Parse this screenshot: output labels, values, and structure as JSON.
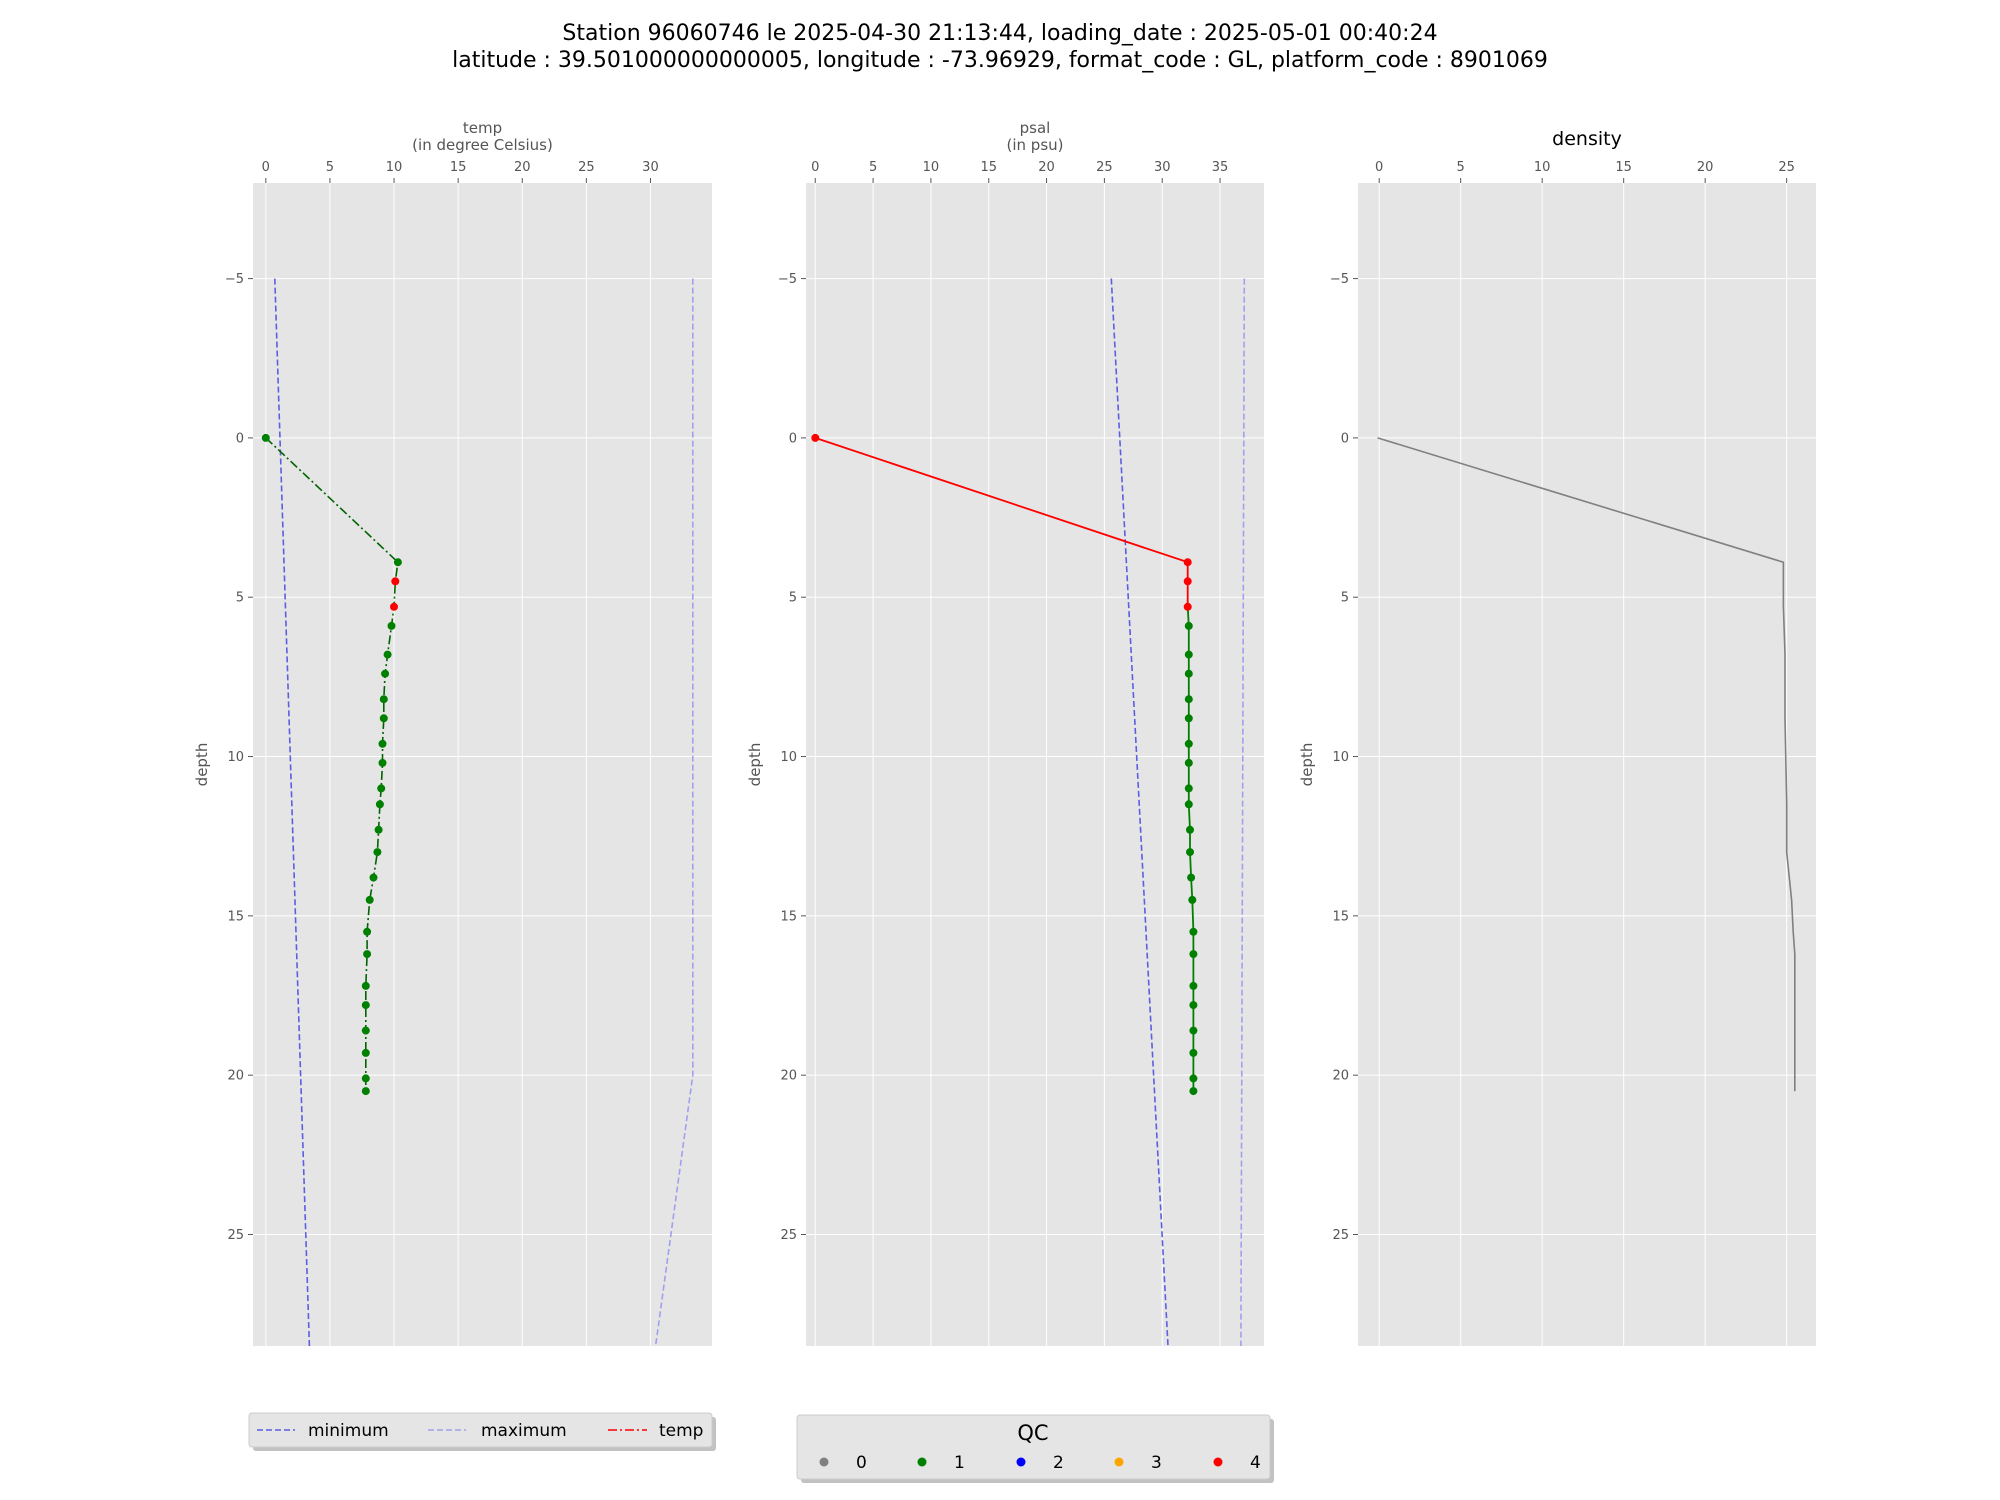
{
  "figure": {
    "title_line1": "Station 96060746 le 2025-04-30 21:13:44, loading_date : 2025-05-01 00:40:24",
    "title_line2": "latitude : 39.501000000000005, longitude : -73.96929, format_code : GL, platform_code : 8901069"
  },
  "colors": {
    "panel_bg": "#e5e5e5",
    "grid": "#ffffff",
    "minimum": "#5b5fe0",
    "maximum": "#a0a0ee",
    "temp_line": "#006400",
    "psal_line": "#ff0000",
    "density_line": "#808080",
    "qc_0": "#808080",
    "qc_1": "#008000",
    "qc_2": "#0000ff",
    "qc_3": "#ffa500",
    "qc_4": "#ff0000"
  },
  "legends": {
    "lines": {
      "minimum": "minimum",
      "maximum": "maximum",
      "temp": "temp"
    },
    "qc": {
      "title": "QC",
      "labels": [
        "0",
        "1",
        "2",
        "3",
        "4"
      ]
    }
  },
  "chart_data": [
    {
      "type": "line",
      "name": "temp",
      "xlabel_line1": "temp",
      "xlabel_line2": "(in degree Celsius)",
      "ylabel": "depth",
      "xticks": [
        0,
        5,
        10,
        15,
        20,
        25,
        30
      ],
      "yticks": [
        -5,
        0,
        5,
        10,
        15,
        20,
        25
      ],
      "xlim": [
        -1,
        34.8
      ],
      "ylim": [
        28.5,
        -8
      ],
      "y_inverted": true,
      "grid": true,
      "depth": [
        0,
        3.9,
        4.5,
        5.3,
        5.9,
        6.8,
        7.4,
        8.2,
        8.8,
        9.6,
        10.2,
        11.0,
        11.5,
        12.3,
        13.0,
        13.8,
        14.5,
        15.5,
        16.2,
        17.2,
        17.8,
        18.6,
        19.3,
        20.1,
        20.5
      ],
      "values": [
        0.0,
        10.3,
        10.1,
        10.0,
        9.8,
        9.5,
        9.3,
        9.2,
        9.2,
        9.1,
        9.1,
        9.0,
        8.9,
        8.8,
        8.7,
        8.4,
        8.1,
        7.9,
        7.9,
        7.8,
        7.8,
        7.8,
        7.8,
        7.8,
        7.8
      ],
      "qc": [
        1,
        1,
        4,
        4,
        1,
        1,
        1,
        1,
        1,
        1,
        1,
        1,
        1,
        1,
        1,
        1,
        1,
        1,
        1,
        1,
        1,
        1,
        1,
        1,
        1
      ],
      "minimum": {
        "depth": [
          -5,
          28.5
        ],
        "values": [
          0.7,
          3.4
        ]
      },
      "maximum": {
        "depth": [
          -5,
          20,
          28.5
        ],
        "values": [
          33.3,
          33.3,
          30.4
        ]
      }
    },
    {
      "type": "line",
      "name": "psal",
      "xlabel_line1": "psal",
      "xlabel_line2": "(in psu)",
      "ylabel": "depth",
      "xticks": [
        0,
        5,
        10,
        15,
        20,
        25,
        30,
        35
      ],
      "yticks": [
        -5,
        0,
        5,
        10,
        15,
        20,
        25
      ],
      "xlim": [
        -0.8,
        38.8
      ],
      "ylim": [
        28.5,
        -8
      ],
      "y_inverted": true,
      "grid": true,
      "depth": [
        0,
        3.9,
        4.5,
        5.3,
        5.9,
        6.8,
        7.4,
        8.2,
        8.8,
        9.6,
        10.2,
        11.0,
        11.5,
        12.3,
        13.0,
        13.8,
        14.5,
        15.5,
        16.2,
        17.2,
        17.8,
        18.6,
        19.3,
        20.1,
        20.5
      ],
      "values": [
        0.0,
        32.2,
        32.2,
        32.2,
        32.3,
        32.3,
        32.3,
        32.3,
        32.3,
        32.3,
        32.3,
        32.3,
        32.3,
        32.4,
        32.4,
        32.5,
        32.6,
        32.7,
        32.7,
        32.7,
        32.7,
        32.7,
        32.7,
        32.7,
        32.7
      ],
      "qc": [
        4,
        4,
        4,
        4,
        1,
        1,
        1,
        1,
        1,
        1,
        1,
        1,
        1,
        1,
        1,
        1,
        1,
        1,
        1,
        1,
        1,
        1,
        1,
        1,
        1
      ],
      "minimum": {
        "depth": [
          -5,
          28.5
        ],
        "values": [
          25.6,
          30.5
        ]
      },
      "maximum": {
        "depth": [
          -5,
          28.5
        ],
        "values": [
          37.1,
          36.8
        ]
      }
    },
    {
      "type": "line",
      "name": "density",
      "title": "density",
      "ylabel": "depth",
      "xticks": [
        0,
        5,
        10,
        15,
        20,
        25
      ],
      "yticks": [
        -5,
        0,
        5,
        10,
        15,
        20,
        25
      ],
      "xlim": [
        -1.3,
        26.8
      ],
      "ylim": [
        28.5,
        -8
      ],
      "y_inverted": true,
      "grid": true,
      "depth": [
        0,
        3.9,
        5.3,
        6.8,
        8.8,
        11.5,
        13.0,
        14.5,
        15.5,
        16.2,
        17.8,
        20.5
      ],
      "values": [
        -0.1,
        24.8,
        24.8,
        24.9,
        24.9,
        25.0,
        25.0,
        25.3,
        25.4,
        25.5,
        25.5,
        25.5
      ]
    }
  ]
}
